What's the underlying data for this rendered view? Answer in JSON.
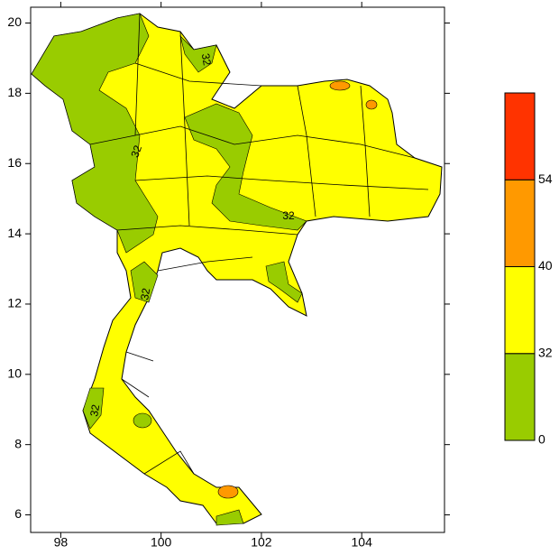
{
  "map": {
    "xlim": [
      97.4,
      105.65
    ],
    "ylim": [
      5.5,
      20.45
    ],
    "xticks": [
      98,
      100,
      102,
      104
    ],
    "yticks": [
      6,
      8,
      10,
      12,
      14,
      16,
      18,
      20
    ],
    "colorbar": {
      "levels": [
        0,
        32,
        40,
        54
      ],
      "colors": [
        "#99cc00",
        "#ffff00",
        "#ff9900",
        "#ff3300"
      ]
    },
    "contour_labels": [
      "32",
      "32",
      "32",
      "32",
      "32"
    ]
  }
}
